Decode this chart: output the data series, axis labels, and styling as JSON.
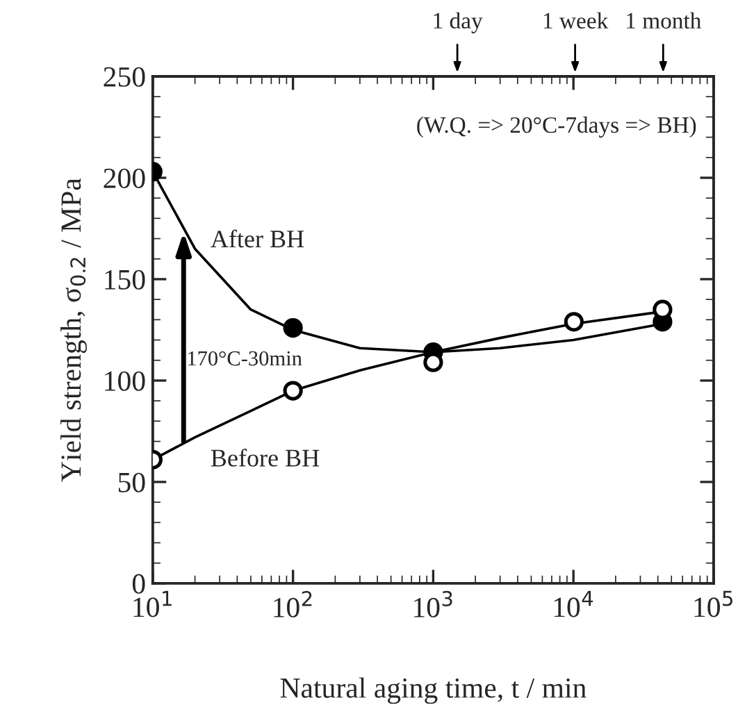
{
  "chart_data": {
    "type": "line",
    "xlabel": "Natural aging time, t / min",
    "ylabel": "Yield strength, σ$_{0.2}$ / MPa",
    "log": "x",
    "xlim": [
      10,
      100000
    ],
    "xticks": [
      {
        "value": 10,
        "label": "10$^{1}$"
      },
      {
        "value": 100,
        "label": "10$^{2}$"
      },
      {
        "value": 1000,
        "label": "10$^{3}$"
      },
      {
        "value": 10000,
        "label": "10$^{4}$"
      },
      {
        "value": 100000,
        "label": "10$^{5}$"
      }
    ],
    "ylim": [
      0,
      250
    ],
    "yticks": [
      0,
      50,
      100,
      150,
      200,
      250
    ],
    "grid": false,
    "series": [
      {
        "type": "scatter",
        "marker": "circle",
        "color": "#000000",
        "x": [
          10,
          100,
          1000,
          43200
        ],
        "values": [
          203,
          126,
          114,
          129
        ]
      },
      {
        "type": "scatter",
        "marker": "circle",
        "color": "#ffffff",
        "x": [
          10,
          100,
          1000,
          10080,
          43200
        ],
        "values": [
          61,
          95,
          109,
          129,
          135
        ]
      },
      {
        "type": "line",
        "marker": "none",
        "name": "After BH",
        "color": "#000000",
        "x": [
          10,
          20,
          50,
          100,
          300,
          1000,
          3000,
          10000,
          43200
        ],
        "values": [
          203,
          165,
          135,
          125,
          116,
          114,
          116,
          120,
          128
        ]
      },
      {
        "type": "line",
        "marker": "none",
        "name": "Before BH",
        "color": "#000000",
        "x": [
          10,
          20,
          50,
          100,
          300,
          1000,
          3000,
          10000,
          43200
        ],
        "values": [
          61,
          72,
          85,
          95,
          105,
          114,
          121,
          128,
          134
        ]
      }
    ],
    "annotations": [
      "(W.Q. => 20°C-7days => BH)",
      "170°C-30min",
      "1 day",
      "1 week",
      "1 month"
    ]
  }
}
